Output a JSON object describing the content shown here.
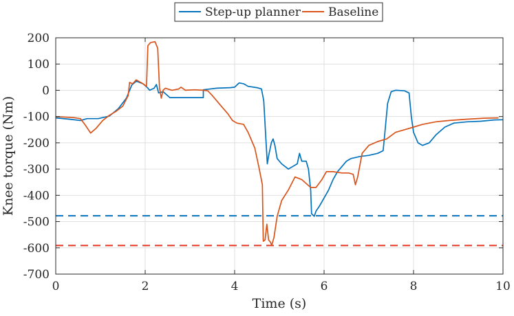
{
  "chart_data": {
    "type": "line",
    "title": "",
    "xlabel": "Time (s)",
    "ylabel": "Knee torque (Nm)",
    "xlim": [
      0,
      10
    ],
    "ylim": [
      -700,
      200
    ],
    "x_ticks": [
      0,
      2,
      4,
      6,
      8,
      10
    ],
    "y_ticks": [
      -700,
      -600,
      -500,
      -400,
      -300,
      -200,
      -100,
      0,
      100,
      200
    ],
    "grid": true,
    "legend": {
      "placement": "top-center, outside",
      "orientation": "horizontal"
    },
    "series": [
      {
        "name": "Step-up planner",
        "color": "#0072BD",
        "points": [
          [
            0.0,
            -105
          ],
          [
            0.3,
            -110
          ],
          [
            0.55,
            -115
          ],
          [
            0.7,
            -108
          ],
          [
            0.95,
            -108
          ],
          [
            1.2,
            -98
          ],
          [
            1.4,
            -70
          ],
          [
            1.58,
            -30
          ],
          [
            1.7,
            20
          ],
          [
            1.8,
            35
          ],
          [
            1.95,
            25
          ],
          [
            2.05,
            10
          ],
          [
            2.1,
            0
          ],
          [
            2.2,
            8
          ],
          [
            2.25,
            22
          ],
          [
            2.3,
            -10
          ],
          [
            2.4,
            -5
          ],
          [
            2.5,
            -20
          ],
          [
            2.55,
            -28
          ],
          [
            2.65,
            -28
          ],
          [
            3.3,
            -28
          ],
          [
            3.3,
            2
          ],
          [
            3.6,
            8
          ],
          [
            3.9,
            10
          ],
          [
            4.0,
            12
          ],
          [
            4.1,
            28
          ],
          [
            4.2,
            25
          ],
          [
            4.3,
            15
          ],
          [
            4.5,
            10
          ],
          [
            4.6,
            5
          ],
          [
            4.65,
            -40
          ],
          [
            4.7,
            -190
          ],
          [
            4.73,
            -280
          ],
          [
            4.76,
            -250
          ],
          [
            4.82,
            -200
          ],
          [
            4.86,
            -185
          ],
          [
            4.9,
            -210
          ],
          [
            4.95,
            -260
          ],
          [
            5.05,
            -280
          ],
          [
            5.2,
            -300
          ],
          [
            5.3,
            -290
          ],
          [
            5.4,
            -280
          ],
          [
            5.45,
            -240
          ],
          [
            5.5,
            -270
          ],
          [
            5.6,
            -270
          ],
          [
            5.65,
            -300
          ],
          [
            5.7,
            -380
          ],
          [
            5.72,
            -470
          ],
          [
            5.78,
            -480
          ],
          [
            5.82,
            -460
          ],
          [
            5.9,
            -440
          ],
          [
            6.0,
            -410
          ],
          [
            6.1,
            -380
          ],
          [
            6.2,
            -340
          ],
          [
            6.3,
            -310
          ],
          [
            6.4,
            -290
          ],
          [
            6.5,
            -270
          ],
          [
            6.6,
            -260
          ],
          [
            6.8,
            -252
          ],
          [
            7.0,
            -248
          ],
          [
            7.2,
            -240
          ],
          [
            7.32,
            -230
          ],
          [
            7.36,
            -160
          ],
          [
            7.42,
            -50
          ],
          [
            7.5,
            -5
          ],
          [
            7.6,
            0
          ],
          [
            7.8,
            -2
          ],
          [
            7.9,
            -10
          ],
          [
            7.95,
            -100
          ],
          [
            8.0,
            -160
          ],
          [
            8.1,
            -200
          ],
          [
            8.2,
            -210
          ],
          [
            8.35,
            -200
          ],
          [
            8.5,
            -170
          ],
          [
            8.7,
            -140
          ],
          [
            8.9,
            -125
          ],
          [
            9.2,
            -120
          ],
          [
            9.5,
            -118
          ],
          [
            9.8,
            -113
          ],
          [
            10.0,
            -112
          ]
        ]
      },
      {
        "name": "Baseline",
        "color": "#D95319",
        "points": [
          [
            0.0,
            -100
          ],
          [
            0.4,
            -104
          ],
          [
            0.55,
            -108
          ],
          [
            0.65,
            -130
          ],
          [
            0.78,
            -163
          ],
          [
            0.9,
            -145
          ],
          [
            1.05,
            -115
          ],
          [
            1.2,
            -95
          ],
          [
            1.35,
            -80
          ],
          [
            1.5,
            -60
          ],
          [
            1.62,
            -20
          ],
          [
            1.65,
            30
          ],
          [
            1.72,
            25
          ],
          [
            1.8,
            40
          ],
          [
            1.95,
            25
          ],
          [
            2.03,
            15
          ],
          [
            2.06,
            170
          ],
          [
            2.12,
            182
          ],
          [
            2.22,
            185
          ],
          [
            2.28,
            160
          ],
          [
            2.32,
            10
          ],
          [
            2.36,
            -30
          ],
          [
            2.4,
            0
          ],
          [
            2.45,
            8
          ],
          [
            2.6,
            0
          ],
          [
            2.75,
            5
          ],
          [
            2.8,
            12
          ],
          [
            2.9,
            0
          ],
          [
            3.1,
            2
          ],
          [
            3.3,
            0
          ],
          [
            3.4,
            -2
          ],
          [
            3.5,
            -20
          ],
          [
            3.7,
            -60
          ],
          [
            3.85,
            -90
          ],
          [
            3.95,
            -115
          ],
          [
            4.05,
            -125
          ],
          [
            4.2,
            -130
          ],
          [
            4.3,
            -160
          ],
          [
            4.45,
            -220
          ],
          [
            4.55,
            -300
          ],
          [
            4.62,
            -360
          ],
          [
            4.64,
            -575
          ],
          [
            4.68,
            -570
          ],
          [
            4.72,
            -510
          ],
          [
            4.76,
            -570
          ],
          [
            4.8,
            -578
          ],
          [
            4.83,
            -590
          ],
          [
            4.88,
            -560
          ],
          [
            4.95,
            -480
          ],
          [
            5.05,
            -420
          ],
          [
            5.2,
            -380
          ],
          [
            5.35,
            -330
          ],
          [
            5.5,
            -340
          ],
          [
            5.6,
            -355
          ],
          [
            5.7,
            -370
          ],
          [
            5.82,
            -370
          ],
          [
            5.95,
            -340
          ],
          [
            6.05,
            -310
          ],
          [
            6.2,
            -310
          ],
          [
            6.4,
            -315
          ],
          [
            6.55,
            -315
          ],
          [
            6.65,
            -320
          ],
          [
            6.7,
            -360
          ],
          [
            6.75,
            -330
          ],
          [
            6.85,
            -240
          ],
          [
            7.0,
            -210
          ],
          [
            7.2,
            -195
          ],
          [
            7.4,
            -185
          ],
          [
            7.6,
            -160
          ],
          [
            7.8,
            -150
          ],
          [
            8.0,
            -140
          ],
          [
            8.2,
            -130
          ],
          [
            8.5,
            -120
          ],
          [
            8.8,
            -115
          ],
          [
            9.2,
            -110
          ],
          [
            9.6,
            -106
          ],
          [
            9.9,
            -105
          ]
        ]
      }
    ],
    "reference_lines": [
      {
        "y": -478,
        "color": "#0072BD",
        "style": "dashed"
      },
      {
        "y": -591,
        "color": "#E8321E",
        "style": "dashed"
      }
    ]
  }
}
